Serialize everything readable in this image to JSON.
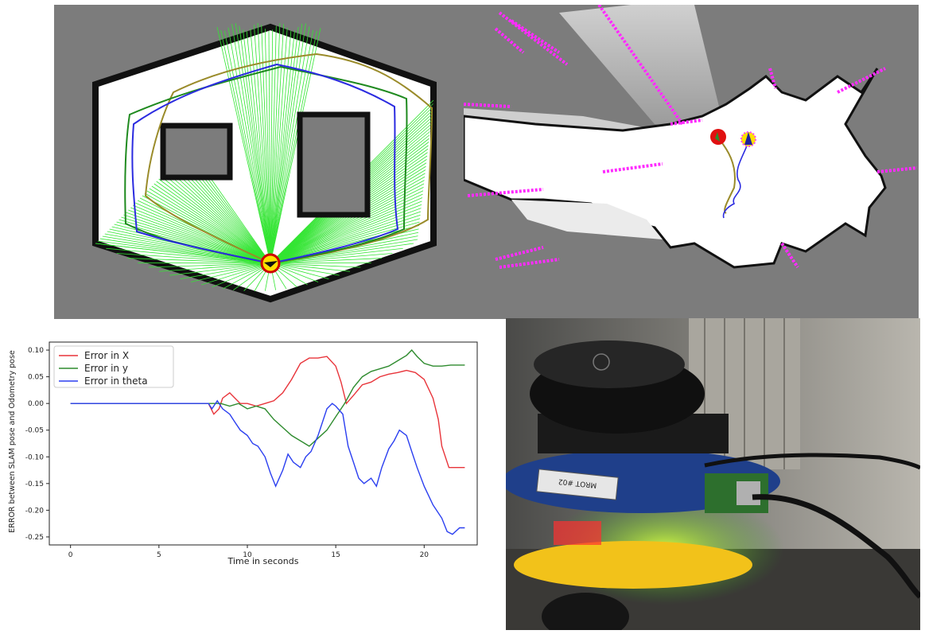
{
  "chart_data": {
    "type": "line",
    "xlabel": "Time in seconds",
    "ylabel": "ERROR between SLAM pose and Odometry pose",
    "xlim": [
      -1.2,
      23
    ],
    "ylim": [
      -0.265,
      0.115
    ],
    "xticks": [
      0,
      5,
      10,
      15,
      20
    ],
    "yticks": [
      0.1,
      0.05,
      0.0,
      -0.05,
      -0.1,
      -0.15,
      -0.2,
      -0.25
    ],
    "legend_position": "top-left",
    "grid": false,
    "series": [
      {
        "name": "Error in X",
        "color": "#e8343a",
        "points": [
          [
            0,
            0
          ],
          [
            7.8,
            0
          ],
          [
            8.1,
            -0.02
          ],
          [
            8.4,
            -0.01
          ],
          [
            8.6,
            0.01
          ],
          [
            9.0,
            0.02
          ],
          [
            9.3,
            0.01
          ],
          [
            9.6,
            0.0
          ],
          [
            10.0,
            0.0
          ],
          [
            10.5,
            -0.005
          ],
          [
            11.0,
            0.0
          ],
          [
            11.5,
            0.005
          ],
          [
            12.0,
            0.02
          ],
          [
            12.5,
            0.045
          ],
          [
            13.0,
            0.075
          ],
          [
            13.5,
            0.085
          ],
          [
            14.0,
            0.085
          ],
          [
            14.5,
            0.088
          ],
          [
            15.0,
            0.07
          ],
          [
            15.3,
            0.04
          ],
          [
            15.6,
            0.0
          ],
          [
            16.0,
            0.015
          ],
          [
            16.5,
            0.035
          ],
          [
            17.0,
            0.04
          ],
          [
            17.5,
            0.05
          ],
          [
            18.0,
            0.055
          ],
          [
            18.5,
            0.058
          ],
          [
            19.0,
            0.062
          ],
          [
            19.5,
            0.058
          ],
          [
            20.0,
            0.045
          ],
          [
            20.5,
            0.01
          ],
          [
            20.8,
            -0.03
          ],
          [
            21.0,
            -0.08
          ],
          [
            21.4,
            -0.12
          ],
          [
            22.0,
            -0.12
          ],
          [
            22.3,
            -0.12
          ]
        ]
      },
      {
        "name": "Error in y",
        "color": "#2e8b2e",
        "points": [
          [
            0,
            0
          ],
          [
            8.0,
            0
          ],
          [
            8.5,
            0.0
          ],
          [
            9.0,
            -0.005
          ],
          [
            9.5,
            0.0
          ],
          [
            10.0,
            -0.01
          ],
          [
            10.5,
            -0.005
          ],
          [
            11.0,
            -0.01
          ],
          [
            11.5,
            -0.03
          ],
          [
            12.0,
            -0.045
          ],
          [
            12.5,
            -0.06
          ],
          [
            13.0,
            -0.07
          ],
          [
            13.5,
            -0.08
          ],
          [
            14.0,
            -0.065
          ],
          [
            14.5,
            -0.05
          ],
          [
            15.0,
            -0.025
          ],
          [
            15.5,
            0.0
          ],
          [
            16.0,
            0.03
          ],
          [
            16.5,
            0.05
          ],
          [
            17.0,
            0.06
          ],
          [
            17.5,
            0.065
          ],
          [
            18.0,
            0.07
          ],
          [
            18.5,
            0.08
          ],
          [
            19.0,
            0.09
          ],
          [
            19.3,
            0.1
          ],
          [
            19.6,
            0.088
          ],
          [
            20.0,
            0.075
          ],
          [
            20.5,
            0.07
          ],
          [
            21.0,
            0.07
          ],
          [
            21.5,
            0.072
          ],
          [
            22.0,
            0.072
          ],
          [
            22.3,
            0.072
          ]
        ]
      },
      {
        "name": "Error in theta",
        "color": "#2b3ff0",
        "points": [
          [
            0,
            0
          ],
          [
            7.8,
            0
          ],
          [
            8.0,
            -0.01
          ],
          [
            8.3,
            0.005
          ],
          [
            8.6,
            -0.01
          ],
          [
            9.0,
            -0.02
          ],
          [
            9.3,
            -0.035
          ],
          [
            9.6,
            -0.05
          ],
          [
            10.0,
            -0.06
          ],
          [
            10.3,
            -0.075
          ],
          [
            10.6,
            -0.08
          ],
          [
            11.0,
            -0.1
          ],
          [
            11.3,
            -0.13
          ],
          [
            11.6,
            -0.155
          ],
          [
            12.0,
            -0.125
          ],
          [
            12.3,
            -0.095
          ],
          [
            12.6,
            -0.11
          ],
          [
            13.0,
            -0.12
          ],
          [
            13.3,
            -0.1
          ],
          [
            13.6,
            -0.09
          ],
          [
            14.0,
            -0.06
          ],
          [
            14.5,
            -0.01
          ],
          [
            14.8,
            0.0
          ],
          [
            15.0,
            -0.005
          ],
          [
            15.4,
            -0.02
          ],
          [
            15.7,
            -0.08
          ],
          [
            16.0,
            -0.11
          ],
          [
            16.3,
            -0.14
          ],
          [
            16.6,
            -0.15
          ],
          [
            17.0,
            -0.14
          ],
          [
            17.3,
            -0.155
          ],
          [
            17.6,
            -0.12
          ],
          [
            18.0,
            -0.085
          ],
          [
            18.3,
            -0.07
          ],
          [
            18.6,
            -0.05
          ],
          [
            19.0,
            -0.06
          ],
          [
            19.3,
            -0.09
          ],
          [
            19.6,
            -0.12
          ],
          [
            20.0,
            -0.155
          ],
          [
            20.5,
            -0.19
          ],
          [
            21.0,
            -0.215
          ],
          [
            21.3,
            -0.24
          ],
          [
            21.6,
            -0.245
          ],
          [
            22.0,
            -0.233
          ],
          [
            22.3,
            -0.233
          ]
        ]
      }
    ]
  },
  "photo": {
    "robot_label": "MROT #02"
  },
  "colors": {
    "sim_background": "#7c7c7c",
    "laser_rays": "#33e533",
    "path_blue": "#2b2be0",
    "path_green": "#1f8a1f",
    "path_olive": "#9a8b2a",
    "map_frontier": "#ff2bff",
    "robot_red": "#e01010",
    "robot_yellow": "#ffe000"
  }
}
